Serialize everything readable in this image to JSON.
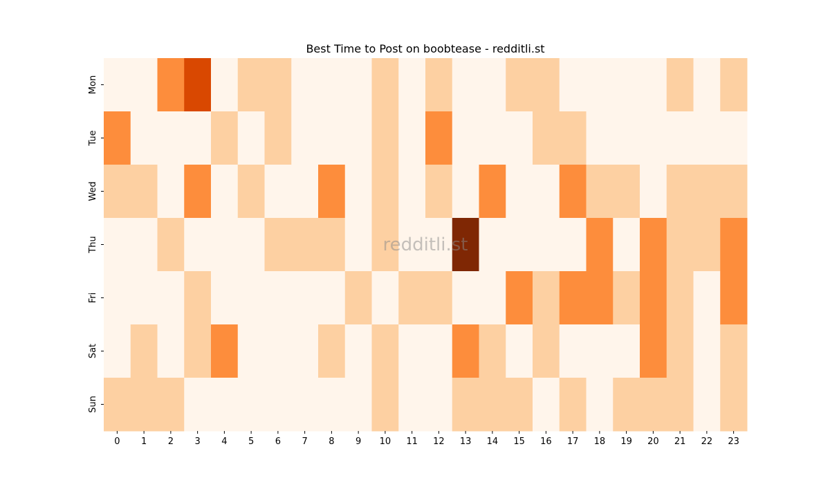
{
  "chart_data": {
    "type": "heatmap",
    "title": "Best Time to Post on boobtease - redditli.st",
    "xlabel": "",
    "ylabel": "",
    "watermark": "redditli.st",
    "x_categories": [
      "0",
      "1",
      "2",
      "3",
      "4",
      "5",
      "6",
      "7",
      "8",
      "9",
      "10",
      "11",
      "12",
      "13",
      "14",
      "15",
      "16",
      "17",
      "18",
      "19",
      "20",
      "21",
      "22",
      "23"
    ],
    "y_categories": [
      "Mon",
      "Tue",
      "Wed",
      "Thu",
      "Fri",
      "Sat",
      "Sun"
    ],
    "colormap": "Oranges",
    "level_colors": [
      "#fff5eb",
      "#fdd0a2",
      "#fd8d3c",
      "#d94801",
      "#7f2704"
    ],
    "colorbar": false,
    "values": [
      [
        0,
        0,
        2,
        3,
        0,
        1,
        1,
        0,
        0,
        0,
        1,
        0,
        1,
        0,
        0,
        1,
        1,
        0,
        0,
        0,
        0,
        1,
        0,
        1
      ],
      [
        2,
        0,
        0,
        0,
        1,
        0,
        1,
        0,
        0,
        0,
        1,
        0,
        2,
        0,
        0,
        0,
        1,
        1,
        0,
        0,
        0,
        0,
        0,
        0
      ],
      [
        1,
        1,
        0,
        2,
        0,
        1,
        0,
        0,
        2,
        0,
        1,
        0,
        1,
        0,
        2,
        0,
        0,
        2,
        1,
        1,
        0,
        1,
        1,
        1
      ],
      [
        0,
        0,
        1,
        0,
        0,
        0,
        1,
        1,
        1,
        0,
        1,
        0,
        0,
        4,
        0,
        0,
        0,
        0,
        2,
        0,
        2,
        1,
        1,
        2
      ],
      [
        0,
        0,
        0,
        1,
        0,
        0,
        0,
        0,
        0,
        1,
        0,
        1,
        1,
        0,
        0,
        2,
        1,
        2,
        2,
        1,
        2,
        1,
        0,
        2
      ],
      [
        0,
        1,
        0,
        1,
        2,
        0,
        0,
        0,
        1,
        0,
        1,
        0,
        0,
        2,
        1,
        0,
        1,
        0,
        0,
        0,
        2,
        1,
        0,
        1
      ],
      [
        1,
        1,
        1,
        0,
        0,
        0,
        0,
        0,
        0,
        0,
        1,
        0,
        0,
        1,
        1,
        1,
        0,
        1,
        0,
        1,
        1,
        1,
        0,
        1
      ]
    ]
  }
}
